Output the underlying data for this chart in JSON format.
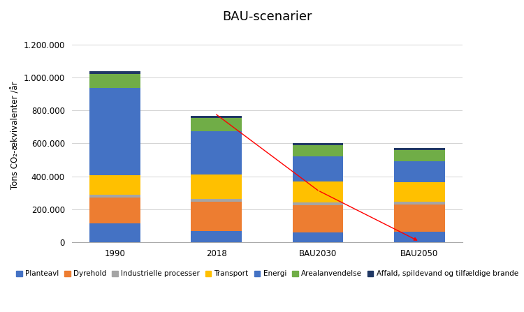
{
  "title": "BAU-scenarier",
  "ylabel": "Tons CO₂-ækvivalenter /år",
  "categories": [
    "1990",
    "2018",
    "BAU2030",
    "BAU2050"
  ],
  "segments": [
    {
      "label": "Planteavl",
      "color": "#4472C4",
      "values": [
        115000,
        70000,
        60000,
        65000
      ]
    },
    {
      "label": "Dyrehold",
      "color": "#ED7D31",
      "values": [
        155000,
        175000,
        165000,
        165000
      ]
    },
    {
      "label": "Industrielle processer",
      "color": "#A5A5A5",
      "values": [
        18000,
        18000,
        18000,
        18000
      ]
    },
    {
      "label": "Transport",
      "color": "#FFC000",
      "values": [
        120000,
        150000,
        125000,
        115000
      ]
    },
    {
      "label": "Energi",
      "color": "#4472C4",
      "values": [
        530000,
        260000,
        155000,
        130000
      ]
    },
    {
      "label": "Arealanvendelse",
      "color": "#70AD47",
      "values": [
        85000,
        80000,
        65000,
        68000
      ]
    },
    {
      "label": "Affald, spildevand og tilfældige brande",
      "color": "#203864",
      "values": [
        15000,
        15000,
        12000,
        12000
      ]
    }
  ],
  "arrow_points": [
    [
      1,
      775000
    ],
    [
      2,
      315000
    ],
    [
      3,
      5000
    ]
  ],
  "ylim": [
    0,
    1300000
  ],
  "yticks": [
    0,
    200000,
    400000,
    600000,
    800000,
    1000000,
    1200000
  ],
  "ytick_labels": [
    "0",
    "200.000",
    "400.000",
    "600.000",
    "800.000",
    "1.000.000",
    "1.200.000"
  ],
  "bar_width": 0.5,
  "background_color": "#FFFFFF",
  "title_fontsize": 13,
  "axis_fontsize": 8.5,
  "legend_fontsize": 7.5
}
